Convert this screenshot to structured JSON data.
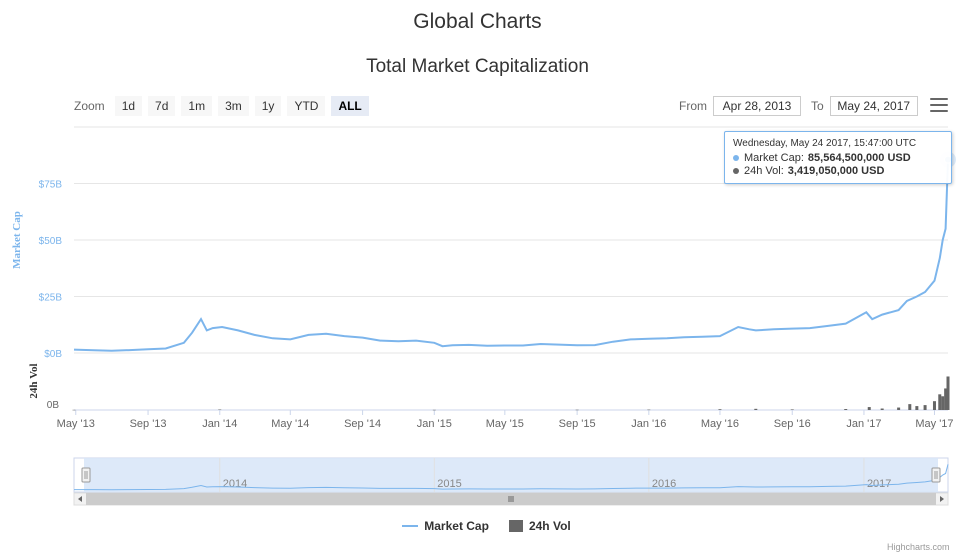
{
  "header": {
    "page_title": "Global Charts",
    "chart_title": "Total Market Capitalization"
  },
  "zoom": {
    "label": "Zoom",
    "buttons": [
      "1d",
      "7d",
      "1m",
      "3m",
      "1y",
      "YTD",
      "ALL"
    ],
    "active": "ALL"
  },
  "range": {
    "from_label": "From",
    "from_value": "Apr 28, 2013",
    "to_label": "To",
    "to_value": "May 24, 2017"
  },
  "tooltip": {
    "header": "Wednesday, May 24 2017, 15:47:00 UTC",
    "market_cap_label": "Market Cap:",
    "market_cap_value": "85,564,500,000 USD",
    "vol_label": "24h Vol:",
    "vol_value": "3,419,050,000 USD"
  },
  "legend": {
    "market_cap": "Market Cap",
    "vol": "24h Vol"
  },
  "credits": "Highcharts.com",
  "colors": {
    "market_cap": "#7cb5ec",
    "vol": "#666666",
    "navigator_fill": "#d9e7f8"
  },
  "chart_data": {
    "type": "line",
    "y_axis_top": {
      "title": "Market Cap",
      "ticks": [
        "$0B",
        "$25B",
        "$50B",
        "$75B"
      ],
      "tick_values": [
        0,
        25,
        50,
        75
      ],
      "ylim": [
        0,
        100
      ]
    },
    "y_axis_bottom": {
      "title": "24h Vol",
      "ticks": [
        "0B"
      ]
    },
    "x_ticks": [
      "May '13",
      "Sep '13",
      "Jan '14",
      "May '14",
      "Sep '14",
      "Jan '15",
      "May '15",
      "Sep '15",
      "Jan '16",
      "May '16",
      "Sep '16",
      "Jan '17",
      "May '17"
    ],
    "navigator_ticks": [
      "2014",
      "2015",
      "2016",
      "2017"
    ],
    "series": [
      {
        "name": "Market Cap",
        "unit": "B USD",
        "x": [
          "2013-04-28",
          "2013-06-01",
          "2013-07-01",
          "2013-08-01",
          "2013-09-01",
          "2013-10-01",
          "2013-11-01",
          "2013-11-15",
          "2013-11-30",
          "2013-12-10",
          "2013-12-20",
          "2014-01-05",
          "2014-02-01",
          "2014-03-01",
          "2014-04-01",
          "2014-05-01",
          "2014-06-01",
          "2014-07-01",
          "2014-08-01",
          "2014-09-01",
          "2014-10-01",
          "2014-11-01",
          "2014-12-01",
          "2015-01-01",
          "2015-01-15",
          "2015-02-01",
          "2015-03-01",
          "2015-04-01",
          "2015-05-01",
          "2015-06-01",
          "2015-07-01",
          "2015-08-01",
          "2015-09-01",
          "2015-10-01",
          "2015-11-01",
          "2015-12-01",
          "2016-01-01",
          "2016-02-01",
          "2016-03-01",
          "2016-04-01",
          "2016-05-01",
          "2016-06-01",
          "2016-06-20",
          "2016-07-01",
          "2016-08-01",
          "2016-09-01",
          "2016-10-01",
          "2016-11-01",
          "2016-12-01",
          "2017-01-05",
          "2017-01-15",
          "2017-02-01",
          "2017-03-01",
          "2017-03-15",
          "2017-04-01",
          "2017-04-15",
          "2017-05-01",
          "2017-05-10",
          "2017-05-15",
          "2017-05-20",
          "2017-05-24"
        ],
        "values": [
          1.5,
          1.2,
          1.0,
          1.3,
          1.7,
          2.0,
          4.5,
          9.0,
          15.0,
          10.0,
          11.0,
          11.5,
          10.0,
          8.0,
          6.5,
          6.0,
          8.0,
          8.5,
          7.5,
          6.8,
          5.5,
          5.2,
          5.5,
          4.5,
          3.0,
          3.4,
          3.6,
          3.2,
          3.3,
          3.3,
          4.0,
          3.7,
          3.4,
          3.5,
          5.0,
          6.0,
          6.3,
          6.5,
          7.0,
          7.2,
          7.5,
          11.5,
          10.5,
          10.0,
          10.5,
          10.8,
          11.0,
          12.0,
          13.0,
          18.0,
          15.0,
          17.0,
          19.0,
          23.0,
          25.0,
          27.0,
          32.0,
          42.0,
          50.0,
          55.0,
          85.56
        ]
      },
      {
        "name": "24h Vol",
        "unit": "B USD",
        "x": [
          "2013-04-28",
          "2014-01-01",
          "2015-01-01",
          "2015-09-01",
          "2016-01-01",
          "2016-05-01",
          "2016-07-01",
          "2016-09-01",
          "2016-12-01",
          "2017-01-10",
          "2017-02-01",
          "2017-03-01",
          "2017-03-20",
          "2017-04-01",
          "2017-04-15",
          "2017-05-01",
          "2017-05-10",
          "2017-05-15",
          "2017-05-20",
          "2017-05-24"
        ],
        "values": [
          0.02,
          0.05,
          0.02,
          0.03,
          0.04,
          0.08,
          0.12,
          0.06,
          0.1,
          0.3,
          0.15,
          0.25,
          0.6,
          0.4,
          0.5,
          0.9,
          1.6,
          1.4,
          2.2,
          3.42
        ]
      }
    ]
  }
}
